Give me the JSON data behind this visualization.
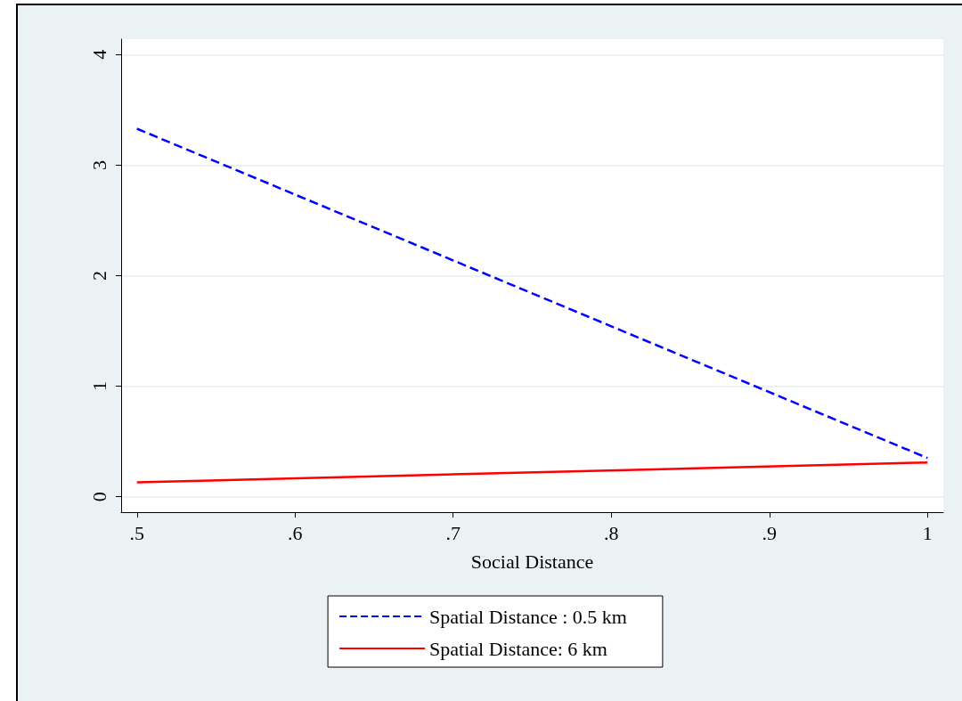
{
  "chart_data": {
    "type": "line",
    "xlabel": "Social Distance",
    "x": [
      0.5,
      1
    ],
    "series": [
      {
        "name": "Spatial Distance : 0.5 km",
        "color": "#0000ff",
        "values": [
          3.33,
          0.35
        ],
        "line_style": "dashed"
      },
      {
        "name": "Spatial Distance: 6 km",
        "color": "#ff0000",
        "values": [
          0.13,
          0.31
        ],
        "line_style": "solid"
      }
    ],
    "xlim": [
      0.49,
      1.01
    ],
    "xticks": [
      {
        "value": 0.5,
        "label": ".5"
      },
      {
        "value": 0.6,
        "label": ".6"
      },
      {
        "value": 0.7,
        "label": ".7"
      },
      {
        "value": 0.8,
        "label": ".8"
      },
      {
        "value": 0.9,
        "label": ".9"
      },
      1
    ],
    "ylim": [
      -0.14,
      4.14
    ],
    "yticks": [
      0,
      1,
      2,
      3,
      4
    ],
    "grid": "y",
    "legend": "bottom",
    "marker": "none"
  }
}
